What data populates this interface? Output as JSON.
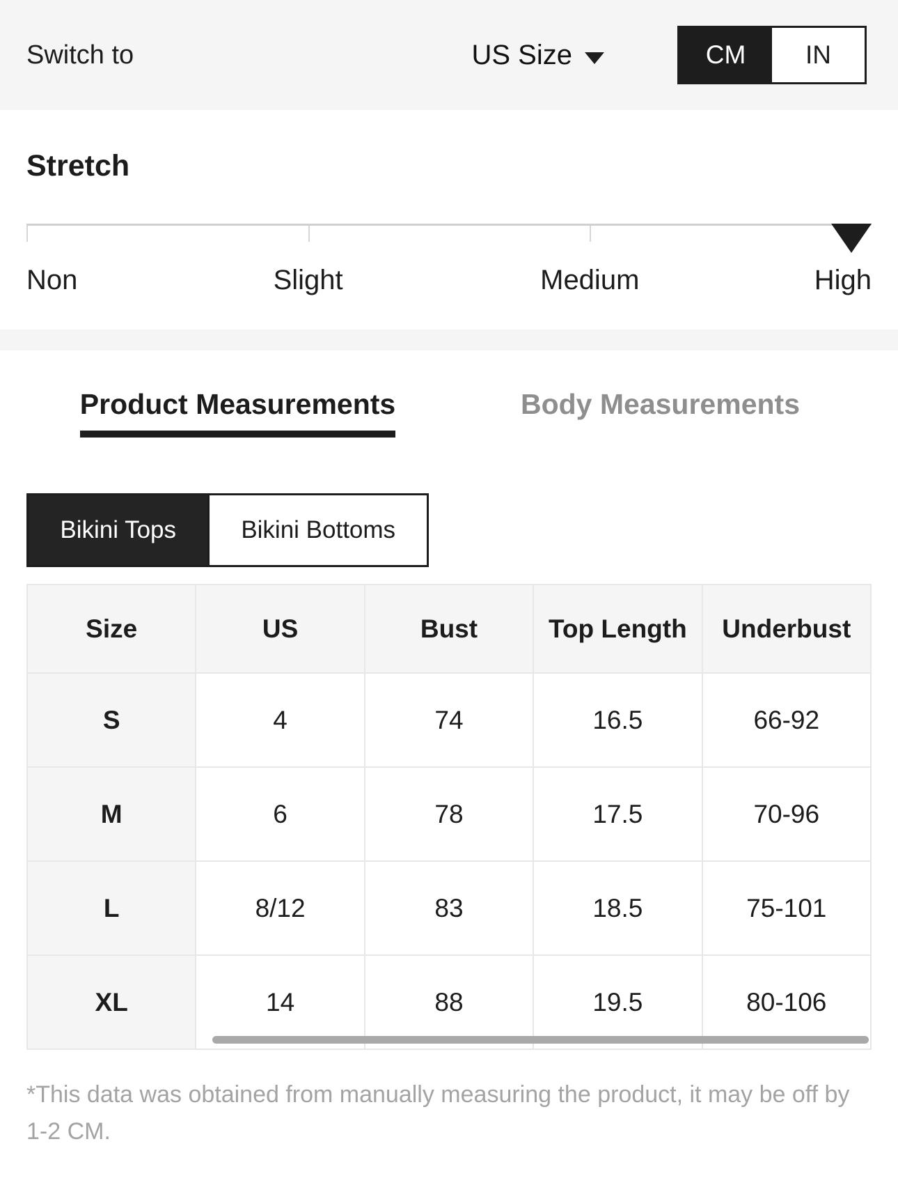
{
  "topbar": {
    "switch_label": "Switch to",
    "size_system": "US Size",
    "unit_toggle": {
      "options": [
        "CM",
        "IN"
      ],
      "selected": "CM"
    }
  },
  "stretch": {
    "title": "Stretch",
    "levels": [
      "Non",
      "Slight",
      "Medium",
      "High"
    ],
    "selected_level": "High"
  },
  "measurement_tabs": {
    "items": [
      "Product Measurements",
      "Body Measurements"
    ],
    "active": "Product Measurements"
  },
  "category_tabs": {
    "items": [
      "Bikini Tops",
      "Bikini Bottoms"
    ],
    "active": "Bikini Tops"
  },
  "size_table": {
    "columns": [
      "Size",
      "US",
      "Bust",
      "Top Length",
      "Underbust"
    ],
    "rows": [
      [
        "S",
        "4",
        "74",
        "16.5",
        "66-92"
      ],
      [
        "M",
        "6",
        "78",
        "17.5",
        "70-96"
      ],
      [
        "L",
        "8/12",
        "83",
        "18.5",
        "75-101"
      ],
      [
        "XL",
        "14",
        "88",
        "19.5",
        "80-106"
      ]
    ]
  },
  "footnote": "*This data was obtained from manually measuring the product, it may be off by 1-2 CM.",
  "colors": {
    "accent_dark": "#1d1d1d",
    "bar_background": "#f5f5f5",
    "inactive_tab_text": "#8e8e8e",
    "table_border": "#e7e7e7",
    "footnote_text": "#a3a3a3",
    "scrollbar": "#a9a9a9"
  }
}
